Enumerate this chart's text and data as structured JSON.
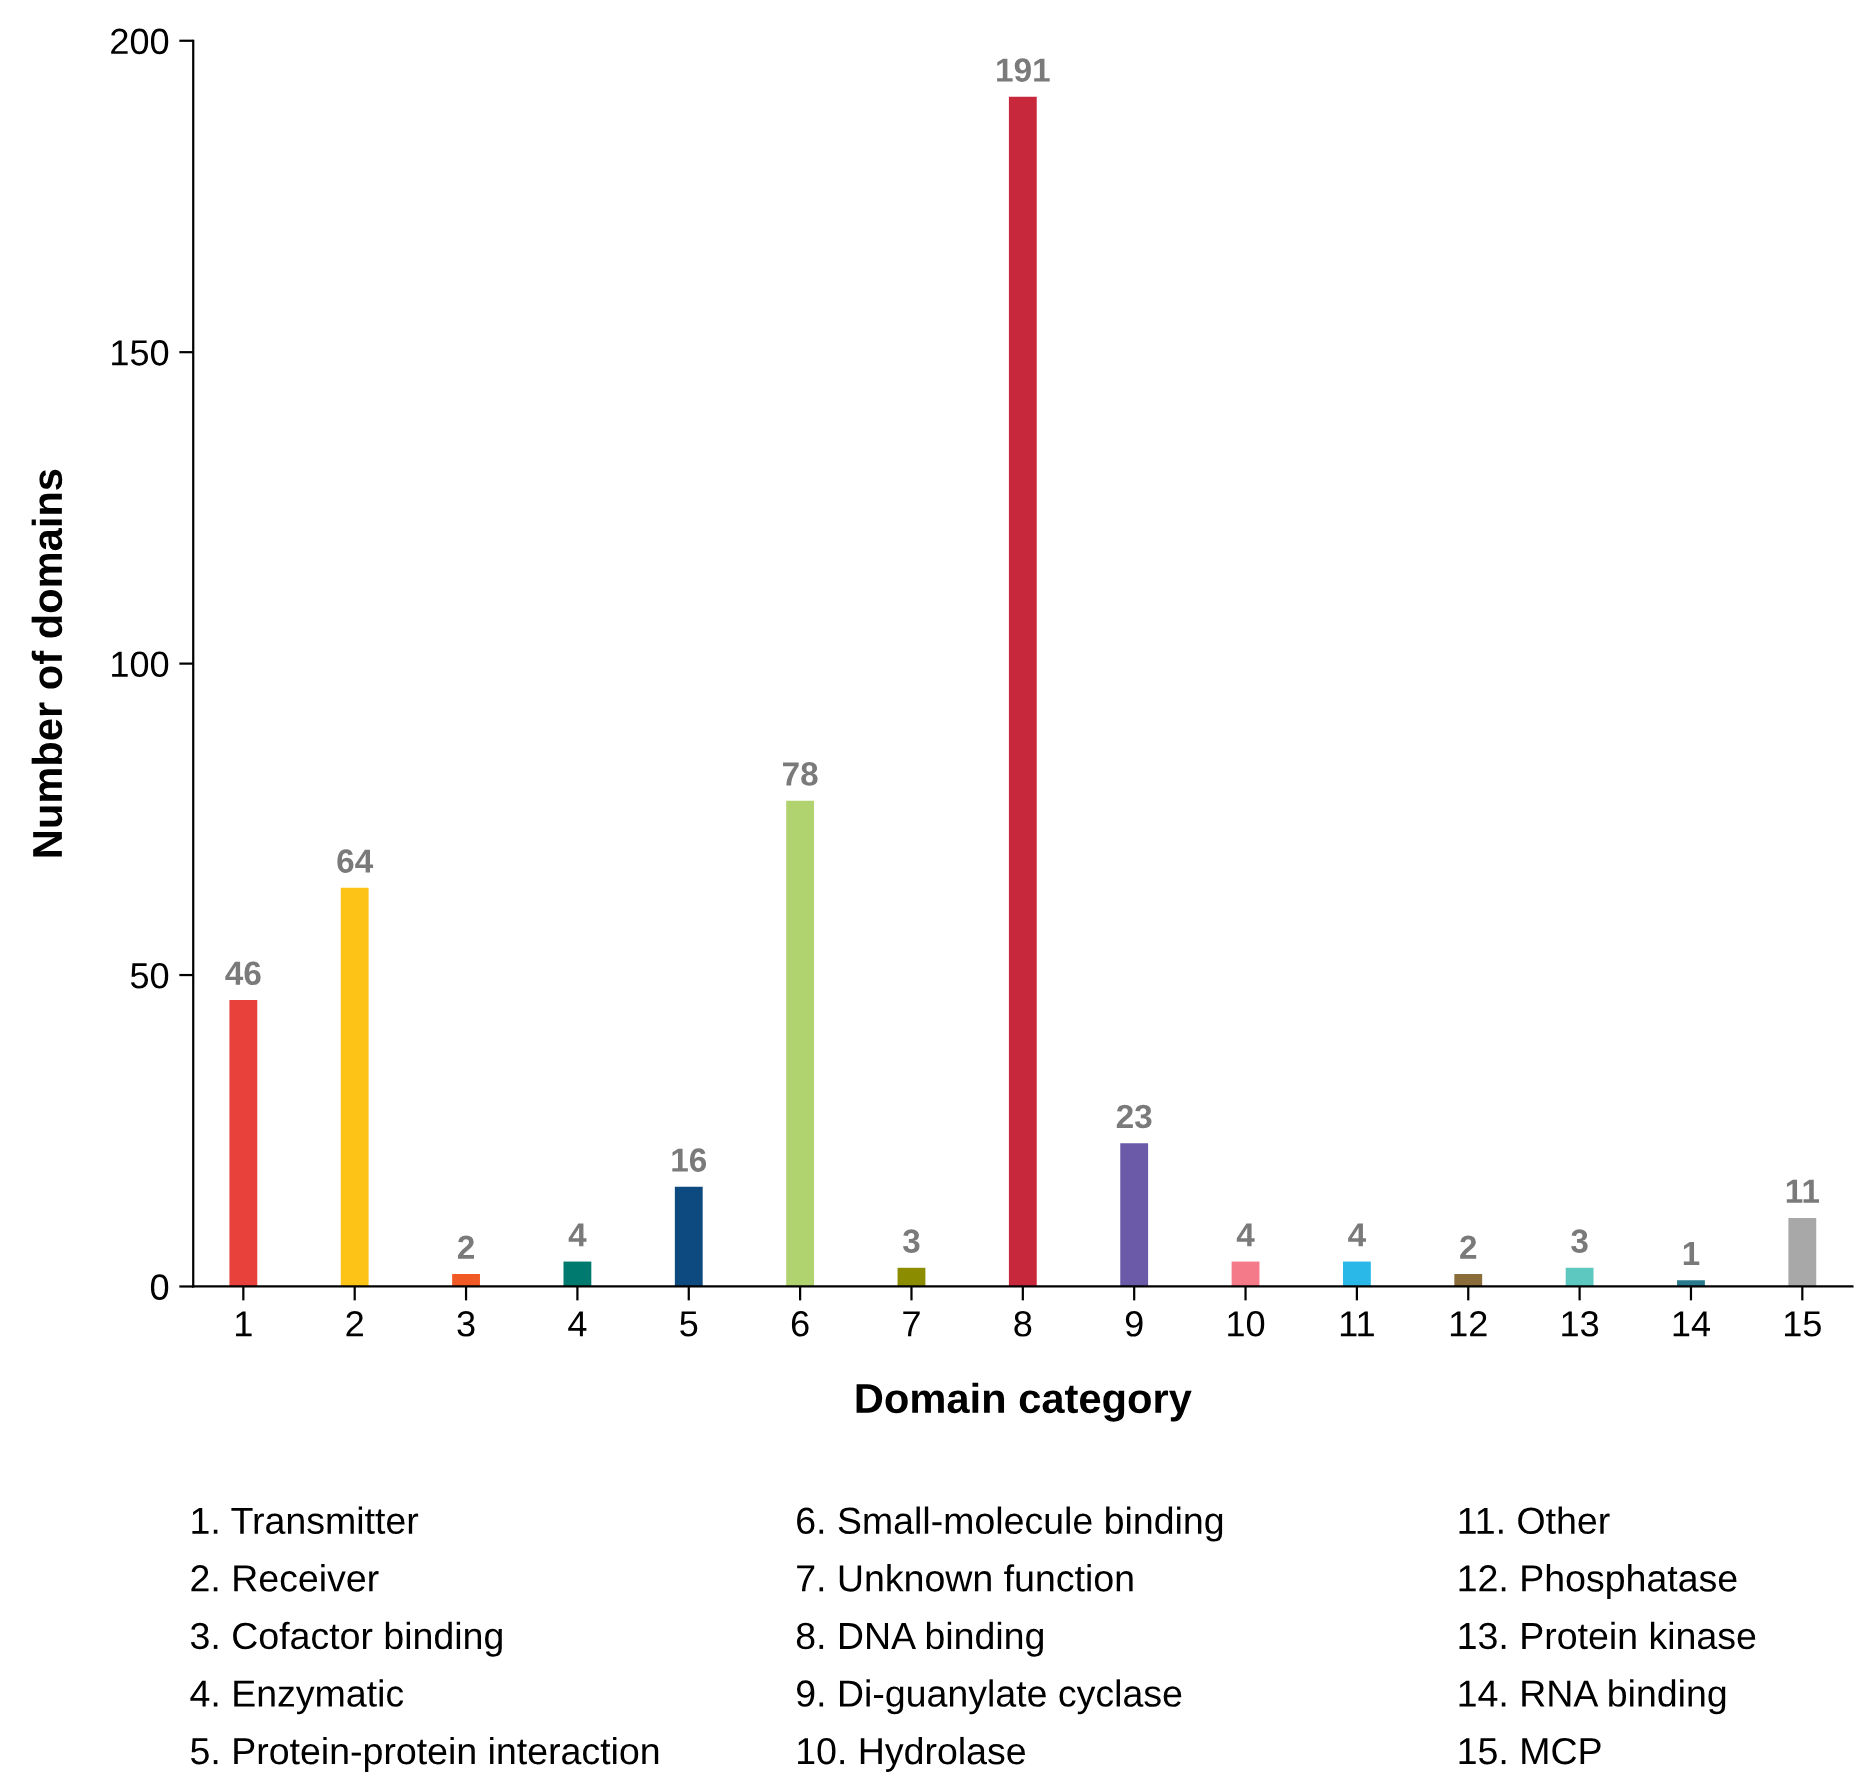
{
  "chart_data": {
    "type": "bar",
    "xlabel": "Domain category",
    "ylabel": "Number of domains",
    "categories": [
      "1",
      "2",
      "3",
      "4",
      "5",
      "6",
      "7",
      "8",
      "9",
      "10",
      "11",
      "12",
      "13",
      "14",
      "15"
    ],
    "values": [
      46,
      64,
      2,
      4,
      16,
      78,
      3,
      191,
      23,
      4,
      4,
      2,
      3,
      1,
      11
    ],
    "colors": [
      "#e8403a",
      "#fdc317",
      "#f15a24",
      "#007a6e",
      "#0d4a80",
      "#b0d36f",
      "#8c8c00",
      "#c8283c",
      "#6a5aa8",
      "#f47a8a",
      "#2ab8e8",
      "#8a6d3b",
      "#5cc8c0",
      "#2a7a8e",
      "#a8a8a8"
    ],
    "ylim": [
      0,
      200
    ],
    "yticks": [
      0,
      50,
      100,
      150,
      200
    ],
    "grid": false,
    "data_labels": true,
    "annotations": [
      "1. Transmitter",
      "2. Receiver",
      "3. Cofactor binding",
      "4. Enzymatic",
      "5. Protein-protein interaction",
      "6. Small-molecule binding",
      "7. Unknown function",
      "8. DNA binding",
      "9. Di-guanylate cyclase",
      "10. Hydrolase",
      "11. Other",
      "12. Phosphatase",
      "13. Protein kinase",
      "14. RNA binding",
      "15. MCP"
    ]
  }
}
